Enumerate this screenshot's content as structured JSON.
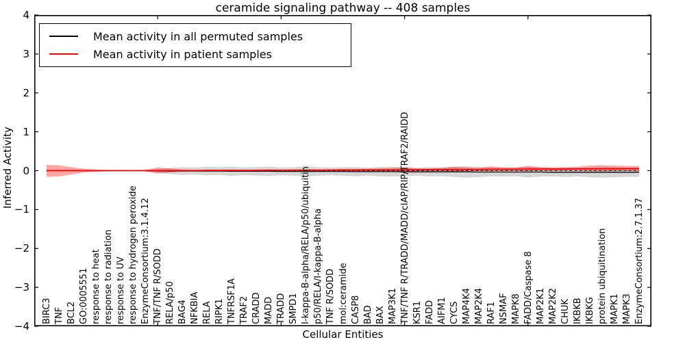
{
  "chart_data": {
    "type": "line",
    "title": "ceramide signaling pathway -- 408 samples",
    "xlabel": "Cellular Entities",
    "ylabel": "Inferred Activity",
    "ylim": [
      -4,
      4
    ],
    "grid": false,
    "legend_position": "upper left",
    "yticks": [
      {
        "label": "4",
        "value": 4
      },
      {
        "label": "3",
        "value": 3
      },
      {
        "label": "2",
        "value": 2
      },
      {
        "label": "1",
        "value": 1
      },
      {
        "label": "0",
        "value": 0
      },
      {
        "label": "−1",
        "value": -1
      },
      {
        "label": "−2",
        "value": -2
      },
      {
        "label": "−3",
        "value": -3
      },
      {
        "label": "−4",
        "value": -4
      }
    ],
    "xtick_marks_at_category_index": [
      9,
      19,
      29,
      39
    ],
    "categories": [
      "BIRC3",
      "TNF",
      "BCL2",
      "GO:0005551",
      "response to heat",
      "response to radiation",
      "response to UV",
      "response to hydrogen peroxide",
      "EnzymeConsortium:3.1.4.12",
      "TNF/TNF R/SODD",
      "RELA/p50",
      "BAG4",
      "NFKBIA",
      "RELA",
      "RIPK1",
      "TNFRSF1A",
      "TRAF2",
      "CRADD",
      "MADD",
      "TRADD",
      "SMPD1",
      "I-kappa-B-alpha/RELA/p50/ubiquitin",
      "p50/RELA/I-kappa-B-alpha",
      "TNF R/SODD",
      "mol:ceramide",
      "CASP8",
      "BAD",
      "BAX",
      "MAP3K1",
      "TNF/TNF R/TRADD/MADD/cIAP/RIP/TRAF2/RAIDD",
      "KSR1",
      "FADD",
      "AIFM1",
      "CYCS",
      "MAP4K4",
      "MAP2K4",
      "RAF1",
      "NSMAF",
      "MAPK8",
      "FADD/Caspase 8",
      "MAP2K1",
      "MAP2K2",
      "CHUK",
      "IKBKB",
      "IKBKG",
      "protein ubiquitination",
      "MAPK1",
      "MAPK3",
      "EnzymeConsortium:2.7.1.37"
    ],
    "series": [
      {
        "name": "Mean activity in all permuted samples",
        "color": "#000000",
        "line_width": 1.3,
        "values": [
          0,
          0,
          0,
          0,
          0,
          0,
          0,
          0,
          0,
          -0.005,
          -0.01,
          -0.01,
          -0.01,
          -0.01,
          -0.01,
          -0.015,
          -0.015,
          -0.015,
          -0.015,
          -0.02,
          -0.02,
          -0.02,
          -0.02,
          -0.02,
          -0.02,
          -0.025,
          -0.025,
          -0.025,
          -0.025,
          -0.03,
          -0.03,
          -0.03,
          -0.03,
          -0.03,
          -0.03,
          -0.035,
          -0.035,
          -0.035,
          -0.035,
          -0.035,
          -0.035,
          -0.04,
          -0.04,
          -0.04,
          -0.04,
          -0.04,
          -0.04,
          -0.04,
          -0.04
        ],
        "band": {
          "color": "#999999",
          "opacity": 0.4,
          "upper": [
            0,
            0,
            0,
            0,
            0,
            0,
            0,
            0.005,
            0.02,
            0.045,
            0.07,
            0.09,
            0.08,
            0.1,
            0.09,
            0.105,
            0.085,
            0.095,
            0.105,
            0.08,
            0.09,
            0.11,
            0.09,
            0.08,
            0.09,
            0.095,
            0.075,
            0.095,
            0.105,
            0.08,
            0.07,
            0.09,
            0.08,
            0.1,
            0.12,
            0.095,
            0.075,
            0.085,
            0.075,
            0.105,
            0.085,
            0.07,
            0.08,
            0.07,
            0.09,
            0.1,
            0.09,
            0.08,
            0.08
          ],
          "lower": [
            0,
            0,
            0,
            0,
            0,
            0,
            0,
            -0.005,
            -0.02,
            -0.055,
            -0.09,
            -0.11,
            -0.1,
            -0.12,
            -0.11,
            -0.135,
            -0.115,
            -0.125,
            -0.135,
            -0.12,
            -0.13,
            -0.15,
            -0.13,
            -0.12,
            -0.13,
            -0.145,
            -0.125,
            -0.145,
            -0.155,
            -0.14,
            -0.13,
            -0.15,
            -0.14,
            -0.16,
            -0.18,
            -0.165,
            -0.145,
            -0.155,
            -0.145,
            -0.175,
            -0.155,
            -0.15,
            -0.16,
            -0.15,
            -0.17,
            -0.18,
            -0.17,
            -0.16,
            -0.16
          ]
        }
      },
      {
        "name": "Mean activity in patient samples",
        "color": "#ff0000",
        "line_width": 1.8,
        "values": [
          0,
          0,
          0,
          0,
          0,
          0,
          0,
          0,
          0,
          0,
          0,
          0,
          0,
          0.005,
          0.005,
          0.005,
          0.005,
          0.005,
          0.01,
          0.01,
          0.01,
          0.01,
          0.01,
          0.015,
          0.015,
          0.015,
          0.02,
          0.02,
          0.02,
          0.025,
          0.025,
          0.025,
          0.03,
          0.03,
          0.03,
          0.03,
          0.035,
          0.035,
          0.035,
          0.04,
          0.04,
          0.04,
          0.04,
          0.045,
          0.045,
          0.045,
          0.05,
          0.05,
          0.05
        ],
        "band": {
          "color": "#ff0000",
          "opacity": 0.35,
          "upper": [
            0.15,
            0.14,
            0.09,
            0.05,
            0.03,
            0.015,
            0.01,
            0.005,
            0.02,
            0.08,
            0.06,
            0.03,
            0.025,
            0.025,
            0.02,
            0.025,
            0.02,
            0.025,
            0.03,
            0.025,
            0.03,
            0.04,
            0.035,
            0.035,
            0.045,
            0.045,
            0.05,
            0.06,
            0.065,
            0.09,
            0.06,
            0.06,
            0.07,
            0.1,
            0.08,
            0.07,
            0.11,
            0.08,
            0.08,
            0.12,
            0.09,
            0.08,
            0.09,
            0.1,
            0.13,
            0.14,
            0.13,
            0.12,
            0.12
          ],
          "lower": [
            -0.16,
            -0.15,
            -0.1,
            -0.05,
            -0.03,
            -0.015,
            -0.01,
            -0.005,
            -0.02,
            -0.07,
            -0.05,
            -0.02,
            -0.01,
            -0.005,
            -0.005,
            -0.005,
            -0.005,
            -0.005,
            -0.005,
            -0.005,
            -0.005,
            -0.01,
            -0.005,
            -0.005,
            -0.01,
            -0.01,
            -0.01,
            -0.01,
            -0.01,
            -0.02,
            -0.01,
            -0.005,
            -0.005,
            -0.015,
            -0.005,
            -0.005,
            -0.015,
            -0.005,
            -0.005,
            -0.015,
            -0.005,
            -0.005,
            0,
            0,
            -0.01,
            -0.015,
            -0.01,
            -0.005,
            -0.02
          ]
        }
      }
    ],
    "zero_line": {
      "value": 0,
      "color": "#000000",
      "style": "dashed"
    }
  }
}
